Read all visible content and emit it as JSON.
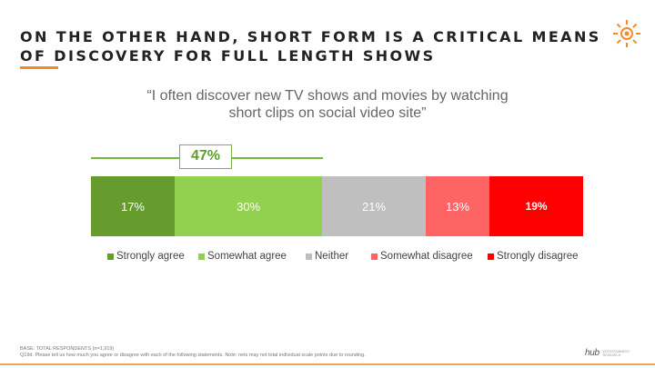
{
  "slide": {
    "title": "ON THE OTHER HAND, SHORT FORM IS A CRITICAL MEANS OF DISCOVERY FOR FULL LENGTH SHOWS",
    "quote": "“I often discover new TV shows and movies by watching short clips on social video site”",
    "net_label": "47%",
    "footnote_line1": "BASE: TOTAL RESPONDENTS (n=1,919)",
    "footnote_line2": "Q19d. Please tell us how much you agree or disagree with each of the following statements.  Note: nets may not total individual scale points due to rounding.",
    "brand_name": "hub",
    "brand_sub": "ENTERTAINMENT RESEARCH",
    "logo_icon": "sun-icon",
    "accent_color": "#f28c28"
  },
  "chart_data": {
    "type": "bar",
    "orientation": "horizontal-stacked",
    "categories": [
      "Strongly agree",
      "Somewhat agree",
      "Neither",
      "Somewhat disagree",
      "Strongly disagree"
    ],
    "values": [
      17,
      30,
      21,
      13,
      19
    ],
    "labels": [
      "17%",
      "30%",
      "21%",
      "13%",
      "19%"
    ],
    "colors": [
      "#669b2e",
      "#92d050",
      "#bfbfbf",
      "#ff6464",
      "#ff0000"
    ],
    "net": {
      "label": "47%",
      "covers": [
        "Strongly agree",
        "Somewhat agree"
      ]
    },
    "legend_position": "bottom"
  }
}
